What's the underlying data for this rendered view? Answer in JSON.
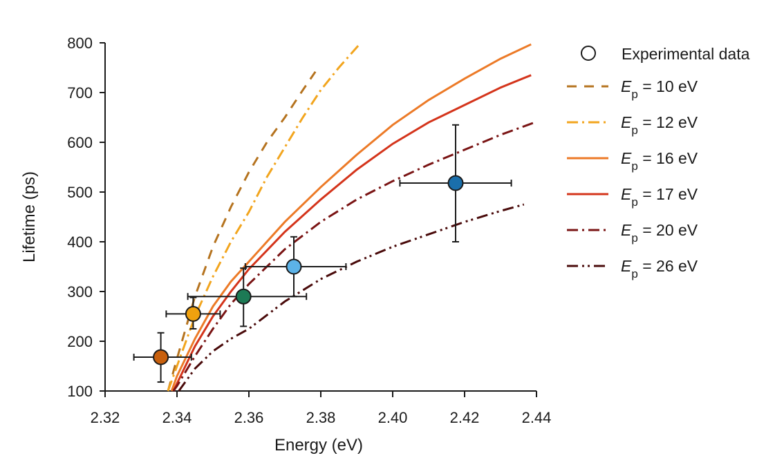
{
  "chart_data": {
    "type": "scatter",
    "xlabel": "Energy (eV)",
    "ylabel": "Lifetime (ps)",
    "xlim": [
      2.32,
      2.44
    ],
    "ylim": [
      100,
      800
    ],
    "xticks": [
      "2.32",
      "2.34",
      "2.36",
      "2.38",
      "2.40",
      "2.42",
      "2.44"
    ],
    "yticks": [
      "100",
      "200",
      "300",
      "400",
      "500",
      "600",
      "700",
      "800"
    ],
    "grid": false,
    "legend_position": "right",
    "experimental": {
      "name": "Experimental data",
      "points": [
        {
          "x": 2.3355,
          "y": 168,
          "xerr_low": 2.328,
          "xerr_high": 2.344,
          "yerr_low": 118,
          "yerr_high": 217,
          "color": "#c8600e"
        },
        {
          "x": 2.3445,
          "y": 255,
          "xerr_low": 2.337,
          "xerr_high": 2.352,
          "yerr_low": 225,
          "yerr_high": 288,
          "color": "#f0a10e"
        },
        {
          "x": 2.3585,
          "y": 290,
          "xerr_low": 2.343,
          "xerr_high": 2.376,
          "yerr_low": 230,
          "yerr_high": 347,
          "color": "#1c7a55"
        },
        {
          "x": 2.3725,
          "y": 350,
          "xerr_low": 2.359,
          "xerr_high": 2.387,
          "yerr_low": 290,
          "yerr_high": 410,
          "color": "#5cb3e8"
        },
        {
          "x": 2.4175,
          "y": 518,
          "xerr_low": 2.402,
          "xerr_high": 2.433,
          "yerr_low": 400,
          "yerr_high": 635,
          "color": "#1a6fab"
        }
      ]
    },
    "series": [
      {
        "label_prefix": "E",
        "label_sub": "p",
        "label_rest": " = 10 eV",
        "color": "#b5731f",
        "dash": "14,11",
        "x": [
          2.3375,
          2.34,
          2.345,
          2.35,
          2.355,
          2.36,
          2.365,
          2.37,
          2.375,
          2.3785
        ],
        "y": [
          100,
          165,
          290,
          390,
          470,
          540,
          600,
          650,
          705,
          742
        ]
      },
      {
        "label_prefix": "E",
        "label_sub": "p",
        "label_rest": " = 12 eV",
        "color": "#f2a51e",
        "dash": "16,6,3,6",
        "x": [
          2.3375,
          2.34,
          2.345,
          2.35,
          2.355,
          2.36,
          2.365,
          2.37,
          2.375,
          2.38,
          2.385,
          2.3905
        ],
        "y": [
          100,
          150,
          250,
          330,
          400,
          460,
          530,
          590,
          650,
          705,
          750,
          795
        ]
      },
      {
        "label_prefix": "E",
        "label_sub": "p",
        "label_rest": " = 16 eV",
        "color": "#ec7a27",
        "dash": "",
        "x": [
          2.3385,
          2.34,
          2.345,
          2.35,
          2.355,
          2.36,
          2.37,
          2.38,
          2.39,
          2.4,
          2.41,
          2.42,
          2.43,
          2.4385
        ],
        "y": [
          100,
          130,
          205,
          270,
          320,
          360,
          440,
          510,
          575,
          635,
          685,
          728,
          768,
          797
        ]
      },
      {
        "label_prefix": "E",
        "label_sub": "p",
        "label_rest": " = 17 eV",
        "color": "#d4341b",
        "dash": "",
        "x": [
          2.339,
          2.34,
          2.345,
          2.35,
          2.355,
          2.36,
          2.37,
          2.38,
          2.39,
          2.4,
          2.41,
          2.42,
          2.43,
          2.4385
        ],
        "y": [
          100,
          115,
          190,
          250,
          300,
          345,
          420,
          485,
          545,
          597,
          640,
          675,
          710,
          735
        ]
      },
      {
        "label_prefix": "E",
        "label_sub": "p",
        "label_rest": " = 20 eV",
        "color": "#7a1414",
        "dash": "16,6,3,6",
        "x": [
          2.339,
          2.34,
          2.345,
          2.35,
          2.355,
          2.36,
          2.37,
          2.38,
          2.39,
          2.4,
          2.41,
          2.42,
          2.43,
          2.4395
        ],
        "y": [
          100,
          110,
          170,
          225,
          275,
          315,
          385,
          440,
          485,
          522,
          555,
          585,
          615,
          640
        ]
      },
      {
        "label_prefix": "E",
        "label_sub": "p",
        "label_rest": " = 26 eV",
        "color": "#4a0b0b",
        "dash": "16,6,3,5,3,6",
        "x": [
          2.3405,
          2.345,
          2.35,
          2.355,
          2.36,
          2.37,
          2.38,
          2.39,
          2.4,
          2.41,
          2.42,
          2.43,
          2.4365
        ],
        "y": [
          100,
          145,
          180,
          205,
          225,
          280,
          325,
          360,
          390,
          415,
          440,
          462,
          475
        ]
      }
    ]
  }
}
